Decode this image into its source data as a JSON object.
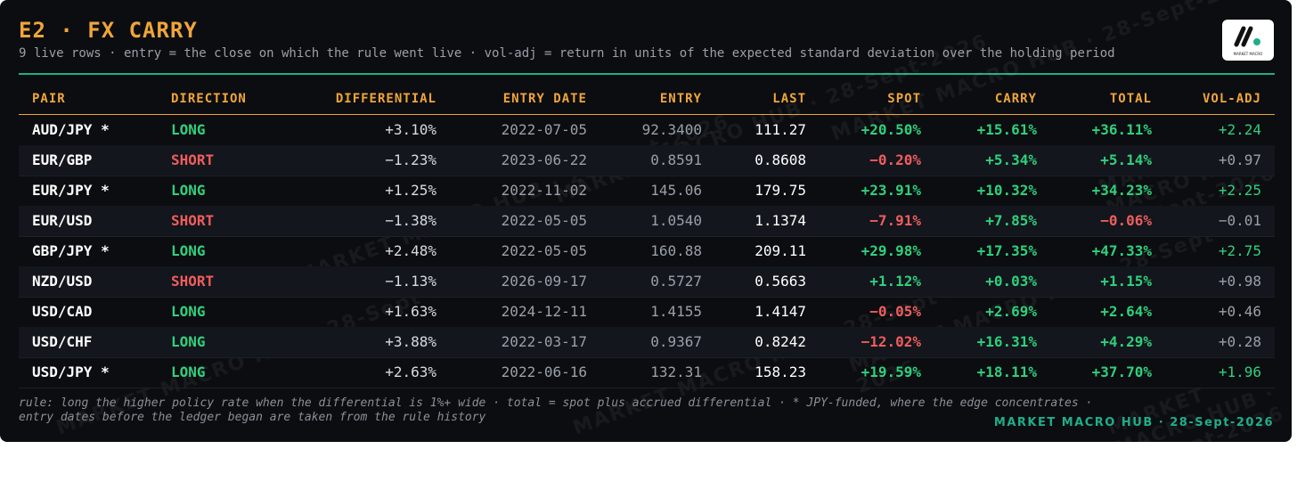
{
  "header": {
    "title": "E2 · FX CARRY",
    "subtitle": "9 live rows · entry = the close on which the rule went live · vol-adj = return in units of the expected standard deviation over the holding period"
  },
  "logo": {
    "text": "MARKET MACRO"
  },
  "watermark": "MARKET MACRO HUB · 28-Sept-2026",
  "table": {
    "columns": [
      "PAIR",
      "DIRECTION",
      "DIFFERENTIAL",
      "ENTRY DATE",
      "ENTRY",
      "LAST",
      "SPOT",
      "CARRY",
      "TOTAL",
      "VOL-ADJ"
    ],
    "rows": [
      [
        "AUD/JPY *",
        "LONG",
        "+3.10%",
        "2022-07-05",
        "92.3400",
        "111.27",
        "+20.50%",
        "+15.61%",
        "+36.11%",
        "+2.24"
      ],
      [
        "EUR/GBP",
        "SHORT",
        "−1.23%",
        "2023-06-22",
        "0.8591",
        "0.8608",
        "−0.20%",
        "+5.34%",
        "+5.14%",
        "+0.97"
      ],
      [
        "EUR/JPY *",
        "LONG",
        "+1.25%",
        "2022-11-02",
        "145.06",
        "179.75",
        "+23.91%",
        "+10.32%",
        "+34.23%",
        "+2.25"
      ],
      [
        "EUR/USD",
        "SHORT",
        "−1.38%",
        "2022-05-05",
        "1.0540",
        "1.1374",
        "−7.91%",
        "+7.85%",
        "−0.06%",
        "−0.01"
      ],
      [
        "GBP/JPY *",
        "LONG",
        "+2.48%",
        "2022-05-05",
        "160.88",
        "209.11",
        "+29.98%",
        "+17.35%",
        "+47.33%",
        "+2.75"
      ],
      [
        "NZD/USD",
        "SHORT",
        "−1.13%",
        "2026-09-17",
        "0.5727",
        "0.5663",
        "+1.12%",
        "+0.03%",
        "+1.15%",
        "+0.98"
      ],
      [
        "USD/CAD",
        "LONG",
        "+1.63%",
        "2024-12-11",
        "1.4155",
        "1.4147",
        "−0.05%",
        "+2.69%",
        "+2.64%",
        "+0.46"
      ],
      [
        "USD/CHF",
        "LONG",
        "+3.88%",
        "2022-03-17",
        "0.9367",
        "0.8242",
        "−12.02%",
        "+16.31%",
        "+4.29%",
        "+0.28"
      ],
      [
        "USD/JPY *",
        "LONG",
        "+2.63%",
        "2022-06-16",
        "132.31",
        "158.23",
        "+19.59%",
        "+18.11%",
        "+37.70%",
        "+1.96"
      ]
    ]
  },
  "footer": {
    "note": "rule: long the higher policy rate when the differential is 1%+ wide · total = spot plus accrued differential · * JPY-funded, where the edge concentrates · entry dates before the ledger began are taken from the rule history",
    "brand": "MARKET MACRO HUB · 28-Sept-2026"
  }
}
